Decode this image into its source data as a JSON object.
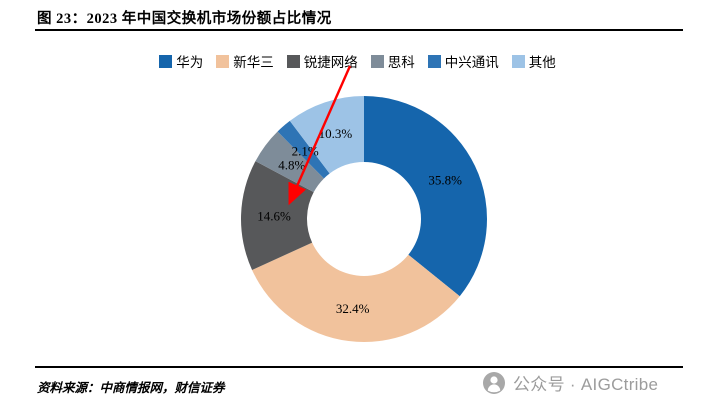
{
  "figure": {
    "title": "图 23：2023 年中国交换机市场份额占比情况"
  },
  "chart_data": {
    "type": "pie",
    "subtype": "donut",
    "title": "2023 年中国交换机市场份额占比情况",
    "legend_position": "top",
    "grid": false,
    "categories": [
      "华为",
      "新华三",
      "锐捷网络",
      "思科",
      "中兴通讯",
      "其他"
    ],
    "values": [
      35.8,
      32.4,
      14.6,
      4.8,
      2.1,
      10.3
    ],
    "labels": [
      "35.8%",
      "32.4%",
      "14.6%",
      "4.8%",
      "2.1%",
      "10.3%"
    ],
    "colors": [
      "#1565AC",
      "#F1C29C",
      "#57585A",
      "#7E8C99",
      "#2E74B5",
      "#9DC3E6"
    ],
    "annotation": {
      "type": "arrow",
      "color": "#FF0000",
      "points_to": "锐捷网络 14.6%"
    }
  },
  "footer": {
    "source": "资料来源：中商情报网，财信证券",
    "watermark": "公众号 · AIGCtribe"
  }
}
